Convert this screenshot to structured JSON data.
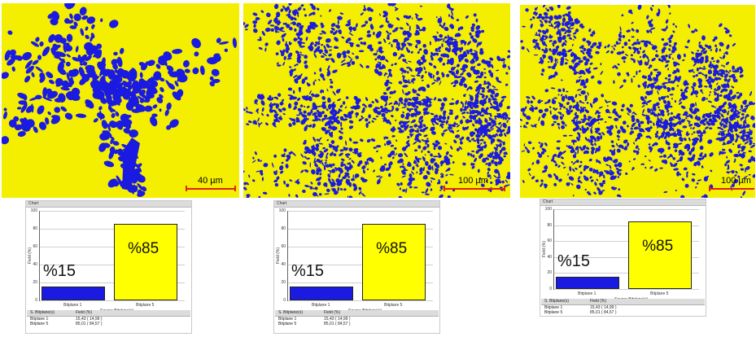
{
  "panels": [
    {
      "scale_text": "40 µm",
      "chart_header": "Chart",
      "chart_data": {
        "type": "bar",
        "categories": [
          "Bitplane 1",
          "Bitplane 5"
        ],
        "values": [
          15.43,
          85.01
        ],
        "ylim": [
          0,
          100
        ],
        "yticks": [
          "100",
          "80",
          "60",
          "40",
          "20",
          "0"
        ],
        "ylabel": "Field (%)",
        "xlabel": "Source Bitplane(s)",
        "bar_colors": [
          "#1a1ae0",
          "#ffff00"
        ],
        "annotations": [
          "%15",
          "%85"
        ]
      },
      "table": {
        "headers": [
          "S. Bitplane(s)",
          "Field (%)"
        ],
        "rows": [
          [
            "Bitplane 1",
            "15,43   ( 14,99 )"
          ],
          [
            "Bitplane 5",
            "85,01   ( 84,57 )"
          ]
        ]
      }
    },
    {
      "scale_text": "100 µm",
      "chart_header": "Chart",
      "chart_data": {
        "type": "bar",
        "categories": [
          "Bitplane 1",
          "Bitplane 5"
        ],
        "values": [
          15.43,
          85.01
        ],
        "ylim": [
          0,
          100
        ],
        "yticks": [
          "100",
          "80",
          "60",
          "40",
          "20",
          "0"
        ],
        "ylabel": "Field (%)",
        "xlabel": "Source Bitplane(s)",
        "bar_colors": [
          "#1a1ae0",
          "#ffff00"
        ],
        "annotations": [
          "%15",
          "%85"
        ]
      },
      "table": {
        "headers": [
          "S. Bitplane(s)",
          "Field (%)"
        ],
        "rows": [
          [
            "Bitplane 1",
            "15,43   ( 14,99 )"
          ],
          [
            "Bitplane 5",
            "85,01   ( 84,57 )"
          ]
        ]
      }
    },
    {
      "scale_text": "100 µm",
      "chart_header": "Chart",
      "chart_data": {
        "type": "bar",
        "categories": [
          "Bitplane 1",
          "Bitplane 5"
        ],
        "values": [
          15.43,
          85.01
        ],
        "ylim": [
          0,
          100
        ],
        "yticks": [
          "100",
          "80",
          "60",
          "40",
          "20",
          "0"
        ],
        "ylabel": "Field (%)",
        "xlabel": "Source Bitplane(s)",
        "bar_colors": [
          "#1a1ae0",
          "#ffff00"
        ],
        "annotations": [
          "%15",
          "%85"
        ]
      },
      "table": {
        "headers": [
          "S. Bitplane(s)",
          "Field (%)"
        ],
        "rows": [
          [
            "Bitplane 1",
            "15,43   ( 14,99 )"
          ],
          [
            "Bitplane 5",
            "85,01   ( 84,57 )"
          ]
        ]
      }
    }
  ],
  "colors": {
    "micro_background": "#f4ef00",
    "micro_particles": "#1a1ae0",
    "scalebar": "#e0201a"
  }
}
